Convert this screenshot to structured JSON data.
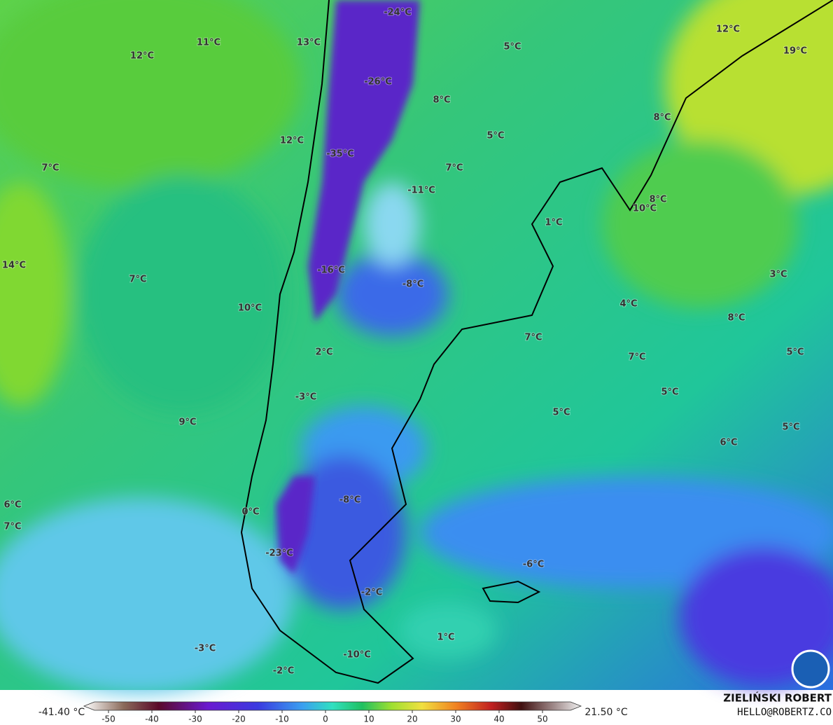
{
  "map": {
    "labels": [
      "-24°C",
      "13°C",
      "11°C",
      "12°C",
      "5°C",
      "12°C",
      "19°C",
      "-26°C",
      "8°C",
      "12°C",
      "-35°C",
      "5°C",
      "8°C",
      "7°C",
      "7°C",
      "-11°C",
      "8°C",
      "10°C",
      "1°C",
      "14°C",
      "-16°C",
      "7°C",
      "-8°C",
      "3°C",
      "10°C",
      "4°C",
      "8°C",
      "7°C",
      "2°C",
      "7°C",
      "5°C",
      "-3°C",
      "5°C",
      "9°C",
      "5°C",
      "5°C",
      "6°C",
      "6°C",
      "7°C",
      "-8°C",
      "0°C",
      "-6°C",
      "-23°C",
      "-2°C",
      "1°C",
      "-3°C",
      "-10°C",
      "-2°C"
    ]
  },
  "colorbar": {
    "min_label": "-41.40 °C",
    "max_label": "21.50 °C",
    "ticks": [
      -50,
      -40,
      -30,
      -20,
      -10,
      0,
      10,
      20,
      30,
      40,
      50
    ]
  },
  "credits": {
    "name": "ZIELIŃSKI ROBERT",
    "email": "HELLO@ROBERTZ.CO"
  }
}
